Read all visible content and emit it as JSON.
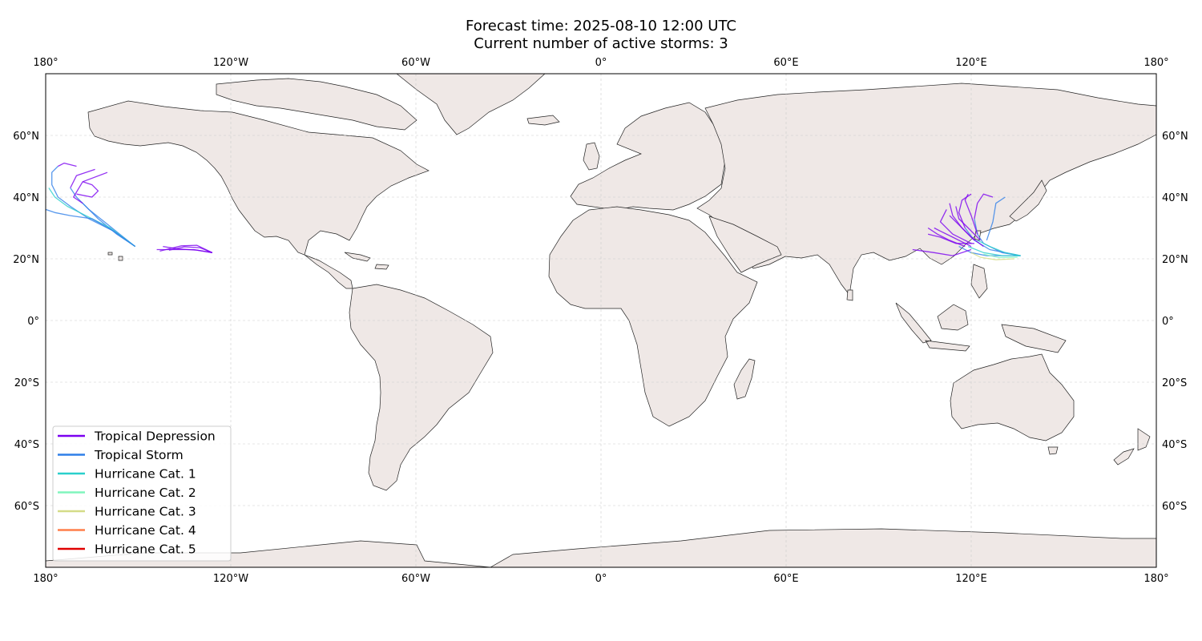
{
  "title_line1": "Forecast time: 2025-08-10 12:00 UTC",
  "title_line2": "Current number of active storms: 3",
  "colors": {
    "land": "#efe8e6",
    "coast": "#222222",
    "grid": "#cccccc"
  },
  "chart_data": {
    "type": "line",
    "projection": "PlateCarree",
    "xlim": [
      -180,
      180
    ],
    "ylim": [
      -80,
      80
    ],
    "grid": true,
    "legend_position": "lower-left",
    "x_ticks": [
      {
        "value": -180,
        "label": "180°"
      },
      {
        "value": -120,
        "label": "120°W"
      },
      {
        "value": -60,
        "label": "60°W"
      },
      {
        "value": 0,
        "label": "0°"
      },
      {
        "value": 60,
        "label": "60°E"
      },
      {
        "value": 120,
        "label": "120°E"
      },
      {
        "value": 180,
        "label": "180°"
      }
    ],
    "y_ticks": [
      {
        "value": 60,
        "label": "60°N"
      },
      {
        "value": 40,
        "label": "40°N"
      },
      {
        "value": 20,
        "label": "20°N"
      },
      {
        "value": 0,
        "label": "0°"
      },
      {
        "value": -20,
        "label": "20°S"
      },
      {
        "value": -40,
        "label": "40°S"
      },
      {
        "value": -60,
        "label": "60°S"
      }
    ],
    "legend": [
      {
        "label": "Tropical Depression",
        "color": "#7b00f0"
      },
      {
        "label": "Tropical Storm",
        "color": "#2f7fe8"
      },
      {
        "label": "Hurricane Cat. 1",
        "color": "#2ad0cc"
      },
      {
        "label": "Hurricane Cat. 2",
        "color": "#80f5bd"
      },
      {
        "label": "Hurricane Cat. 3",
        "color": "#d4dc88"
      },
      {
        "label": "Hurricane Cat. 4",
        "color": "#ff7f4a"
      },
      {
        "label": "Hurricane Cat. 5",
        "color": "#e00000"
      }
    ],
    "tracks": [
      {
        "category": "Tropical Storm",
        "points": [
          [
            -151,
            24
          ],
          [
            -158,
            29
          ],
          [
            -166,
            33
          ],
          [
            -172,
            37
          ],
          [
            -176,
            40
          ],
          [
            -178,
            44
          ],
          [
            -178,
            48
          ],
          [
            -176,
            50
          ]
        ]
      },
      {
        "category": "Tropical Storm",
        "points": [
          [
            -151,
            24
          ],
          [
            -157,
            28
          ],
          [
            -163,
            33
          ],
          [
            -168,
            38
          ]
        ]
      },
      {
        "category": "Tropical Storm",
        "points": [
          [
            -151,
            24
          ],
          [
            -156,
            28
          ],
          [
            -161,
            32
          ],
          [
            -166,
            36
          ],
          [
            -170,
            40
          ],
          [
            -172,
            43
          ]
        ]
      },
      {
        "category": "Hurricane Cat. 1",
        "points": [
          [
            -151,
            24
          ],
          [
            -159,
            30
          ],
          [
            -167,
            34
          ],
          [
            -173,
            37
          ],
          [
            -177,
            40
          ],
          [
            -179,
            43
          ]
        ]
      },
      {
        "category": "Tropical Storm",
        "points": [
          [
            -151,
            24
          ],
          [
            -158,
            29
          ],
          [
            -165,
            33
          ],
          [
            -172,
            34
          ],
          [
            -177,
            35
          ],
          [
            -180,
            36
          ]
        ]
      },
      {
        "category": "Tropical Depression",
        "points": [
          [
            -170,
            41
          ],
          [
            -165,
            40
          ],
          [
            -163,
            42
          ],
          [
            -165,
            44
          ],
          [
            -168,
            45
          ]
        ]
      },
      {
        "category": "Tropical Depression",
        "points": [
          [
            -168,
            38
          ],
          [
            -171,
            40
          ],
          [
            -168,
            45
          ],
          [
            -160,
            48
          ]
        ]
      },
      {
        "category": "Tropical Depression",
        "points": [
          [
            -172,
            43
          ],
          [
            -170,
            47
          ],
          [
            -164,
            49
          ]
        ]
      },
      {
        "category": "Tropical Depression",
        "points": [
          [
            -176,
            50
          ],
          [
            -174,
            51
          ],
          [
            -170,
            50
          ]
        ]
      },
      {
        "category": "Tropical Depression",
        "points": [
          [
            -126,
            22
          ],
          [
            -132,
            23
          ],
          [
            -138,
            23
          ],
          [
            -144,
            23
          ]
        ]
      },
      {
        "category": "Tropical Depression",
        "points": [
          [
            -126,
            22
          ],
          [
            -131,
            22.8
          ],
          [
            -137,
            23.2
          ],
          [
            -142,
            24
          ]
        ]
      },
      {
        "category": "Tropical Depression",
        "points": [
          [
            -126,
            22
          ],
          [
            -130,
            23.6
          ],
          [
            -135,
            23.9
          ],
          [
            -140,
            22.8
          ]
        ]
      },
      {
        "category": "Tropical Depression",
        "points": [
          [
            -126,
            22
          ],
          [
            -131,
            24.4
          ],
          [
            -136,
            24.2
          ],
          [
            -143,
            22.5
          ]
        ]
      },
      {
        "category": "Tropical Storm",
        "points": [
          [
            136,
            21
          ],
          [
            130,
            21
          ],
          [
            125,
            21
          ],
          [
            120,
            22
          ],
          [
            116,
            24
          ]
        ]
      },
      {
        "category": "Tropical Storm",
        "points": [
          [
            136,
            21
          ],
          [
            130,
            22
          ],
          [
            124,
            25
          ],
          [
            122,
            28
          ],
          [
            121,
            33
          ]
        ]
      },
      {
        "category": "Tropical Storm",
        "points": [
          [
            136,
            21
          ],
          [
            131,
            22
          ],
          [
            126,
            23
          ],
          [
            121,
            26
          ],
          [
            118,
            30
          ]
        ]
      },
      {
        "category": "Hurricane Cat. 1",
        "points": [
          [
            136,
            21
          ],
          [
            130,
            21
          ],
          [
            124,
            22
          ],
          [
            119,
            24
          ]
        ]
      },
      {
        "category": "Hurricane Cat. 1",
        "points": [
          [
            136,
            21
          ],
          [
            131,
            22
          ],
          [
            126,
            24
          ],
          [
            122,
            26
          ]
        ]
      },
      {
        "category": "Hurricane Cat. 3",
        "points": [
          [
            134,
            20
          ],
          [
            128,
            19.7
          ],
          [
            123,
            20.5
          ],
          [
            120,
            22
          ]
        ]
      },
      {
        "category": "Hurricane Cat. 2",
        "points": [
          [
            135,
            20.5
          ],
          [
            129,
            20.4
          ],
          [
            124,
            21.5
          ]
        ]
      },
      {
        "category": "Tropical Depression",
        "points": [
          [
            120,
            24
          ],
          [
            114,
            27
          ],
          [
            110,
            29
          ],
          [
            108,
            30
          ]
        ]
      },
      {
        "category": "Tropical Depression",
        "points": [
          [
            118,
            24
          ],
          [
            113,
            26
          ],
          [
            109,
            28
          ],
          [
            106,
            30
          ]
        ]
      },
      {
        "category": "Tropical Depression",
        "points": [
          [
            120,
            23
          ],
          [
            114,
            21
          ],
          [
            108,
            22
          ],
          [
            101,
            23
          ]
        ]
      },
      {
        "category": "Tropical Depression",
        "points": [
          [
            121,
            26
          ],
          [
            117,
            30
          ],
          [
            114,
            34
          ],
          [
            113,
            38
          ]
        ]
      },
      {
        "category": "Tropical Depression",
        "points": [
          [
            122,
            28
          ],
          [
            120,
            34
          ],
          [
            118,
            39
          ],
          [
            119,
            41
          ]
        ]
      },
      {
        "category": "Tropical Depression",
        "points": [
          [
            120,
            25
          ],
          [
            114,
            28
          ],
          [
            110,
            32
          ],
          [
            112,
            36
          ]
        ]
      },
      {
        "category": "Tropical Depression",
        "points": [
          [
            121,
            33
          ],
          [
            122,
            38
          ],
          [
            124,
            41
          ],
          [
            127,
            40
          ]
        ]
      },
      {
        "category": "Tropical Depression",
        "points": [
          [
            118,
            30
          ],
          [
            116,
            35
          ],
          [
            117,
            39
          ],
          [
            120,
            41
          ]
        ]
      },
      {
        "category": "Tropical Depression",
        "points": [
          [
            121,
            25
          ],
          [
            115,
            25
          ],
          [
            110,
            27
          ],
          [
            106,
            28
          ]
        ]
      },
      {
        "category": "Tropical Depression",
        "points": [
          [
            123,
            26
          ],
          [
            119,
            30
          ],
          [
            116,
            33
          ],
          [
            115,
            37
          ]
        ]
      },
      {
        "category": "Tropical Depression",
        "points": [
          [
            124,
            24
          ],
          [
            120,
            27
          ],
          [
            116,
            31
          ],
          [
            113,
            34
          ]
        ]
      },
      {
        "category": "Tropical Storm",
        "points": [
          [
            125,
            26
          ],
          [
            127,
            32
          ],
          [
            128,
            38
          ],
          [
            131,
            40
          ]
        ]
      }
    ]
  }
}
